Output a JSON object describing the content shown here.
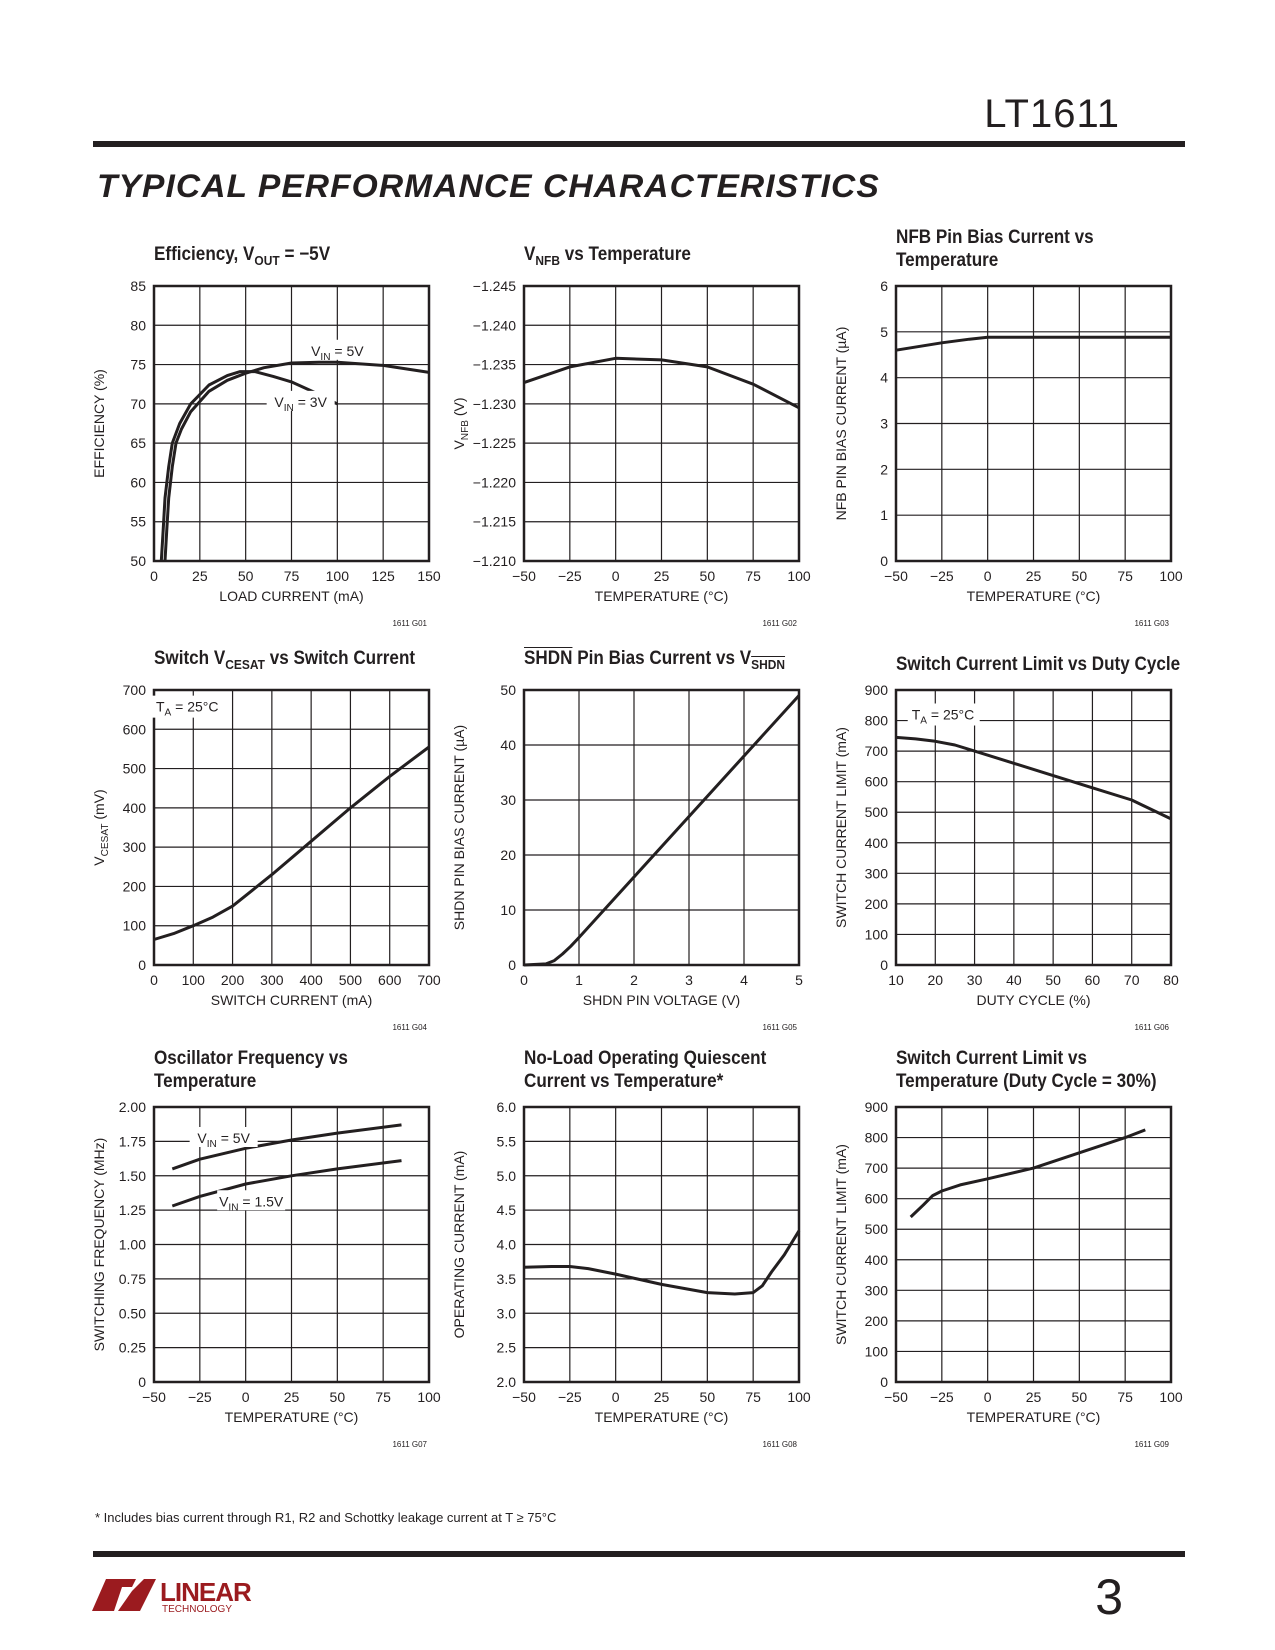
{
  "header": {
    "part_number": "LT1611",
    "section_title": "TYPICAL PERFORMANCE CHARACTERISTICS"
  },
  "footnote": "* Includes bias current through R1, R2 and Schottky leakage current at T ≥ 75°C",
  "footer": {
    "page_number": "3",
    "logo_text": "LINEAR",
    "logo_subtext": "TECHNOLOGY",
    "brand_color": "#9b1b1f"
  },
  "chart_data": [
    {
      "type": "line",
      "title": [
        {
          "t": "Efficiency, V"
        },
        {
          "t": "OUT",
          "sub": true
        },
        {
          "t": " = −5V"
        }
      ],
      "xlabel": "LOAD CURRENT (mA)",
      "ylabel": "EFFICIENCY (%)",
      "code": "1611 G01",
      "xlim": [
        0,
        150
      ],
      "ylim": [
        50,
        85
      ],
      "xticks": [
        "0",
        "25",
        "50",
        "75",
        "100",
        "125",
        "150"
      ],
      "yticks": [
        "50",
        "55",
        "60",
        "65",
        "70",
        "75",
        "80",
        "85"
      ],
      "grid": true,
      "series": [
        {
          "name": "VIN = 5V",
          "label": [
            {
              "t": "V"
            },
            {
              "t": "IN",
              "sub": true
            },
            {
              "t": " = 5V"
            }
          ],
          "x": [
            6,
            7,
            8,
            10,
            12,
            15,
            20,
            30,
            40,
            50,
            60,
            75,
            90,
            100,
            125,
            150
          ],
          "y": [
            50,
            54,
            58,
            62,
            65,
            66.8,
            69,
            71.6,
            73,
            73.9,
            74.6,
            75.2,
            75.3,
            75.3,
            74.9,
            74
          ]
        },
        {
          "name": "VIN = 3V",
          "label": [
            {
              "t": "V"
            },
            {
              "t": "IN",
              "sub": true
            },
            {
              "t": " = 3V"
            }
          ],
          "x": [
            4,
            5,
            6,
            8,
            10,
            14,
            20,
            30,
            40,
            47,
            55,
            65,
            75,
            90,
            100
          ],
          "y": [
            50,
            54,
            58,
            62,
            65,
            67.5,
            70,
            72.4,
            73.6,
            74.1,
            74.1,
            73.5,
            72.8,
            71.2,
            70
          ]
        }
      ]
    },
    {
      "type": "line",
      "title": [
        {
          "t": "V"
        },
        {
          "t": "NFB",
          "sub": true
        },
        {
          "t": " vs Temperature"
        }
      ],
      "xlabel": "TEMPERATURE (°C)",
      "ylabel": "V_NFB (V)",
      "ylabel_parts": [
        {
          "t": "V"
        },
        {
          "t": "NFB",
          "sub": true
        },
        {
          "t": " (V)"
        }
      ],
      "code": "1611 G02",
      "xlim": [
        -50,
        100
      ],
      "ylim": [
        -1.21,
        -1.245
      ],
      "xticks": [
        "−50",
        "−25",
        "0",
        "25",
        "50",
        "75",
        "100"
      ],
      "yticks": [
        "−1.210",
        "−1.215",
        "−1.220",
        "−1.225",
        "−1.230",
        "−1.235",
        "−1.240",
        "−1.245"
      ],
      "grid": true,
      "series": [
        {
          "name": "VNFB",
          "x": [
            -50,
            -25,
            0,
            25,
            50,
            75,
            100
          ],
          "y": [
            -1.2327,
            -1.2347,
            -1.2358,
            -1.2356,
            -1.2347,
            -1.2325,
            -1.2295
          ]
        }
      ]
    },
    {
      "type": "line",
      "title": [
        {
          "t": "NFB Pin Bias Current vs"
        },
        {
          "br": true
        },
        {
          "t": "Temperature"
        }
      ],
      "xlabel": "TEMPERATURE (°C)",
      "ylabel": "NFB PIN BIAS CURRENT (µA)",
      "code": "1611 G03",
      "xlim": [
        -50,
        100
      ],
      "ylim": [
        0,
        6
      ],
      "xticks": [
        "−50",
        "−25",
        "0",
        "25",
        "50",
        "75",
        "100"
      ],
      "yticks": [
        "0",
        "1",
        "2",
        "3",
        "4",
        "5",
        "6"
      ],
      "grid": true,
      "series": [
        {
          "name": "NFB bias",
          "x": [
            -50,
            -25,
            -10,
            0,
            25,
            50,
            75,
            100
          ],
          "y": [
            4.6,
            4.76,
            4.84,
            4.88,
            4.88,
            4.88,
            4.88,
            4.88
          ]
        }
      ]
    },
    {
      "type": "line",
      "title": [
        {
          "t": "Switch V"
        },
        {
          "t": "CESAT",
          "sub": true
        },
        {
          "t": " vs Switch Current"
        }
      ],
      "xlabel": "SWITCH CURRENT (mA)",
      "ylabel": "VCESAT (mV)",
      "ylabel_parts": [
        {
          "t": "V"
        },
        {
          "t": "CESAT",
          "sub": true
        },
        {
          "t": " (mV)"
        }
      ],
      "code": "1611 G04",
      "annotation": [
        {
          "t": "T"
        },
        {
          "t": "A",
          "sub": true
        },
        {
          "t": " = 25°C"
        }
      ],
      "xlim": [
        0,
        700
      ],
      "ylim": [
        0,
        700
      ],
      "xticks": [
        "0",
        "100",
        "200",
        "300",
        "400",
        "500",
        "600",
        "700"
      ],
      "yticks": [
        "0",
        "100",
        "200",
        "300",
        "400",
        "500",
        "600",
        "700"
      ],
      "grid": true,
      "series": [
        {
          "name": "VCESAT",
          "x": [
            0,
            50,
            100,
            150,
            200,
            300,
            400,
            500,
            600,
            700
          ],
          "y": [
            65,
            80,
            100,
            122,
            150,
            230,
            315,
            400,
            480,
            555
          ]
        }
      ]
    },
    {
      "type": "line",
      "title": [
        {
          "t": "SHDN",
          "over": true
        },
        {
          "t": " Pin Bias Current vs V"
        },
        {
          "t": "SHDN",
          "sub": true,
          "over": true
        }
      ],
      "xlabel": "SHDN PIN VOLTAGE (V)",
      "ylabel": "SHDN PIN BIAS CURRENT (µA)",
      "code": "1611 G05",
      "xlim": [
        0,
        5
      ],
      "ylim": [
        0,
        50
      ],
      "xticks": [
        "0",
        "1",
        "2",
        "3",
        "4",
        "5"
      ],
      "yticks": [
        "0",
        "10",
        "20",
        "30",
        "40",
        "50"
      ],
      "grid": true,
      "series": [
        {
          "name": "SHDN bias",
          "x": [
            0,
            0.4,
            0.55,
            0.7,
            0.85,
            1,
            2,
            3,
            4,
            5
          ],
          "y": [
            0,
            0.2,
            0.8,
            2,
            3.4,
            5,
            16,
            27,
            38,
            49
          ]
        }
      ]
    },
    {
      "type": "line",
      "title": [
        {
          "t": "Switch Current Limit vs Duty Cycle"
        }
      ],
      "xlabel": "DUTY CYCLE (%)",
      "ylabel": "SWITCH CURRENT LIMIT (mA)",
      "code": "1611 G06",
      "annotation": [
        {
          "t": "T"
        },
        {
          "t": "A",
          "sub": true
        },
        {
          "t": " = 25°C"
        }
      ],
      "xlim": [
        10,
        80
      ],
      "ylim": [
        0,
        900
      ],
      "xticks": [
        "10",
        "20",
        "30",
        "40",
        "50",
        "60",
        "70",
        "80"
      ],
      "yticks": [
        "0",
        "100",
        "200",
        "300",
        "400",
        "500",
        "600",
        "700",
        "800",
        "900"
      ],
      "grid": true,
      "series": [
        {
          "name": "Current limit",
          "x": [
            10,
            15,
            20,
            25,
            30,
            40,
            50,
            60,
            70,
            80
          ],
          "y": [
            745,
            740,
            732,
            720,
            700,
            660,
            620,
            580,
            540,
            478
          ]
        }
      ]
    },
    {
      "type": "line",
      "title": [
        {
          "t": "Oscillator Frequency vs"
        },
        {
          "br": true
        },
        {
          "t": "Temperature"
        }
      ],
      "xlabel": "TEMPERATURE (°C)",
      "ylabel": "SWITCHING FREQUENCY (MHz)",
      "code": "1611 G07",
      "xlim": [
        -50,
        100
      ],
      "ylim": [
        0,
        2
      ],
      "xticks": [
        "−50",
        "−25",
        "0",
        "25",
        "50",
        "75",
        "100"
      ],
      "yticks": [
        "0",
        "0.25",
        "0.50",
        "0.75",
        "1.00",
        "1.25",
        "1.50",
        "1.75",
        "2.00"
      ],
      "grid": true,
      "series": [
        {
          "name": "VIN = 5V",
          "label": [
            {
              "t": "V"
            },
            {
              "t": "IN",
              "sub": true
            },
            {
              "t": " = 5V"
            }
          ],
          "x": [
            -40,
            -25,
            0,
            25,
            50,
            85
          ],
          "y": [
            1.55,
            1.62,
            1.7,
            1.76,
            1.81,
            1.87
          ]
        },
        {
          "name": "VIN = 1.5V",
          "label": [
            {
              "t": "V"
            },
            {
              "t": "IN",
              "sub": true
            },
            {
              "t": " = 1.5V"
            }
          ],
          "x": [
            -40,
            -25,
            0,
            25,
            50,
            85
          ],
          "y": [
            1.28,
            1.35,
            1.44,
            1.5,
            1.55,
            1.61
          ]
        }
      ]
    },
    {
      "type": "line",
      "title": [
        {
          "t": "No-Load Operating Quiescent"
        },
        {
          "br": true
        },
        {
          "t": "Current vs Temperature*"
        }
      ],
      "xlabel": "TEMPERATURE (°C)",
      "ylabel": "OPERATING CURRENT (mA)",
      "code": "1611 G08",
      "xlim": [
        -50,
        100
      ],
      "ylim": [
        2,
        6
      ],
      "xticks": [
        "−50",
        "−25",
        "0",
        "25",
        "50",
        "75",
        "100"
      ],
      "yticks": [
        "2.0",
        "2.5",
        "3.0",
        "3.5",
        "4.0",
        "4.5",
        "5.0",
        "5.5",
        "6.0"
      ],
      "grid": true,
      "series": [
        {
          "name": "Iq",
          "x": [
            -50,
            -35,
            -25,
            -15,
            0,
            25,
            50,
            65,
            75,
            80,
            85,
            92,
            100
          ],
          "y": [
            3.67,
            3.68,
            3.68,
            3.65,
            3.57,
            3.42,
            3.3,
            3.28,
            3.3,
            3.4,
            3.6,
            3.85,
            4.2
          ]
        }
      ]
    },
    {
      "type": "line",
      "title": [
        {
          "t": "Switch Current Limit vs"
        },
        {
          "br": true
        },
        {
          "t": "Temperature (Duty Cycle = 30%)"
        }
      ],
      "xlabel": "TEMPERATURE (°C)",
      "ylabel": "SWITCH CURRENT LIMIT (mA)",
      "code": "1611 G09",
      "xlim": [
        -50,
        100
      ],
      "ylim": [
        0,
        900
      ],
      "xticks": [
        "−50",
        "−25",
        "0",
        "25",
        "50",
        "75",
        "100"
      ],
      "yticks": [
        "0",
        "100",
        "200",
        "300",
        "400",
        "500",
        "600",
        "700",
        "800",
        "900"
      ],
      "grid": true,
      "series": [
        {
          "name": "Current limit",
          "x": [
            -42,
            -35,
            -30,
            -25,
            -15,
            0,
            25,
            50,
            75,
            86
          ],
          "y": [
            540,
            580,
            610,
            625,
            645,
            665,
            700,
            750,
            800,
            825
          ]
        }
      ]
    }
  ]
}
